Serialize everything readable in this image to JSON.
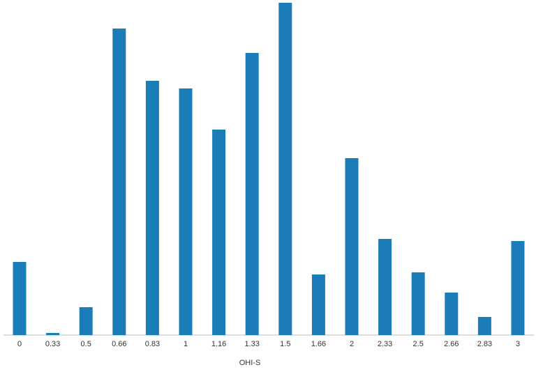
{
  "chart_data": {
    "type": "bar",
    "x_label": "OHI-S",
    "categories": [
      "0",
      "0.33",
      "0.5",
      "0.66",
      "0.83",
      "1",
      "1.16",
      "1.33",
      "1.5",
      "1.66",
      "2",
      "2.33",
      "2.5",
      "2.66",
      "2.83",
      "3"
    ],
    "values": [
      105,
      3,
      40,
      440,
      365,
      354,
      295,
      405,
      477,
      87,
      254,
      138,
      90,
      61,
      26,
      135
    ],
    "color": "#1a7db8",
    "ylim": [
      0,
      480
    ]
  }
}
